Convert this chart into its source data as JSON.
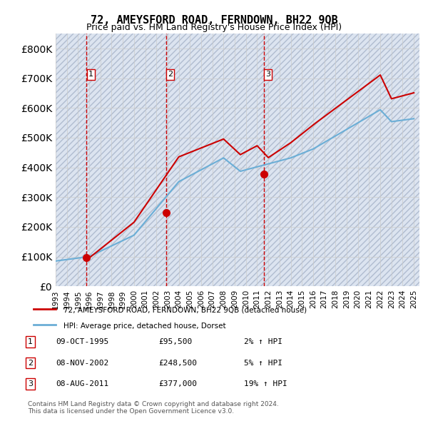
{
  "title": "72, AMEYSFORD ROAD, FERNDOWN, BH22 9QB",
  "subtitle": "Price paid vs. HM Land Registry's House Price Index (HPI)",
  "xlim_start": 1993.0,
  "xlim_end": 2025.5,
  "ylim": [
    0,
    850000
  ],
  "yticks": [
    0,
    100000,
    200000,
    300000,
    400000,
    500000,
    600000,
    700000,
    800000
  ],
  "ytick_labels": [
    "£0",
    "£100K",
    "£200K",
    "£300K",
    "£400K",
    "£500K",
    "£600K",
    "£700K",
    "£800K"
  ],
  "hpi_color": "#6baed6",
  "price_color": "#cc0000",
  "transaction_color": "#cc0000",
  "dashed_line_color": "#cc0000",
  "background_hatch_color": "#d0d8e8",
  "grid_color": "#cccccc",
  "transactions": [
    {
      "date": 1995.77,
      "price": 95500,
      "label": "1"
    },
    {
      "date": 2002.85,
      "price": 248500,
      "label": "2"
    },
    {
      "date": 2011.6,
      "price": 377000,
      "label": "3"
    }
  ],
  "legend_entries": [
    "72, AMEYSFORD ROAD, FERNDOWN, BH22 9QB (detached house)",
    "HPI: Average price, detached house, Dorset"
  ],
  "table_rows": [
    {
      "num": "1",
      "date": "09-OCT-1995",
      "price": "£95,500",
      "hpi": "2% ↑ HPI"
    },
    {
      "num": "2",
      "date": "08-NOV-2002",
      "price": "£248,500",
      "hpi": "5% ↑ HPI"
    },
    {
      "num": "3",
      "date": "08-AUG-2011",
      "price": "£377,000",
      "hpi": "19% ↑ HPI"
    }
  ],
  "footer": "Contains HM Land Registry data © Crown copyright and database right 2024.\nThis data is licensed under the Open Government Licence v3.0."
}
